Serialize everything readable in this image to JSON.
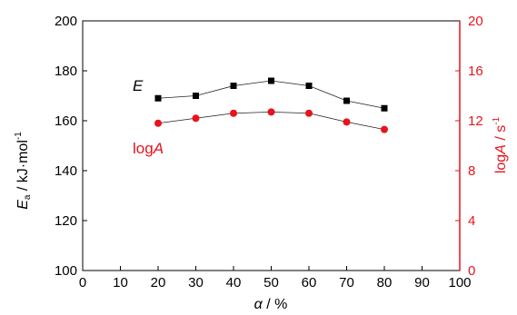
{
  "colors": {
    "left_axis": "#000000",
    "right_axis": "#e8131b",
    "series_E": "#000000",
    "series_logA": "#e8131b"
  },
  "chart_data": {
    "type": "scatter",
    "x": [
      20,
      30,
      40,
      50,
      60,
      70,
      80
    ],
    "xlim": [
      0,
      100
    ],
    "xticks": [
      0,
      10,
      20,
      30,
      40,
      50,
      60,
      70,
      80,
      90,
      100
    ],
    "ylim_left": [
      100,
      200
    ],
    "yticks_left": [
      100,
      120,
      140,
      160,
      180,
      200
    ],
    "ylim_right": [
      0,
      20
    ],
    "yticks_right": [
      0,
      4,
      8,
      12,
      16,
      20
    ],
    "xlabel": {
      "symbol": "α",
      "unit": " / %"
    },
    "ylabel_left": {
      "symbol": "E",
      "sub": "a",
      "unit": " / kJ·mol",
      "sup": "-1"
    },
    "ylabel_right": {
      "symbol": "log",
      "italic": "A",
      "unit": " / s",
      "sup": "-1"
    },
    "series": [
      {
        "name": "E",
        "axis": "left",
        "marker": "square",
        "connected": true,
        "values": [
          169,
          170,
          174,
          176,
          174,
          168,
          165
        ]
      },
      {
        "name": "logA",
        "name_parts": [
          "log",
          "A"
        ],
        "axis": "right",
        "marker": "circle",
        "connected": true,
        "values": [
          11.8,
          12.2,
          12.6,
          12.7,
          12.6,
          11.9,
          11.3
        ]
      }
    ],
    "grid": false,
    "legend": "inline labels"
  }
}
